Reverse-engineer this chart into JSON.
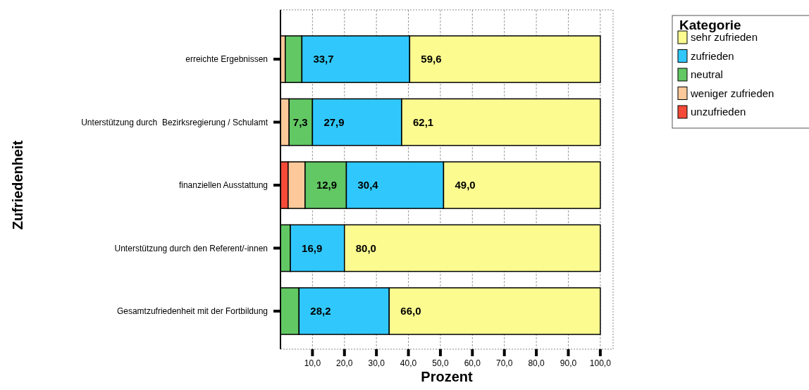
{
  "chart_data": {
    "type": "bar",
    "orientation": "horizontal",
    "stacked": true,
    "categories": [
      "erreichte Ergebnissen",
      "Unterstützung durch  Bezirksregierung / Schulamt",
      "finanziellen Ausstattung",
      "Unterstützung durch den Referent/-innen",
      "Gesamtzufriedenheit mit der Fortbildung"
    ],
    "series": [
      {
        "name": "unzufrieden",
        "color": "#f54a38",
        "values": [
          null,
          null,
          2.4,
          null,
          null
        ],
        "value_labels": [
          null,
          null,
          null,
          null,
          null
        ]
      },
      {
        "name": "weniger zufrieden",
        "color": "#fdc99a",
        "values": [
          1.5,
          2.7,
          5.3,
          null,
          null
        ],
        "value_labels": [
          null,
          null,
          null,
          null,
          null
        ]
      },
      {
        "name": "neutral",
        "color": "#62c864",
        "values": [
          5.2,
          7.3,
          12.9,
          3.1,
          5.8
        ],
        "value_labels": [
          null,
          "7,3",
          "12,9",
          null,
          null
        ]
      },
      {
        "name": "zufrieden",
        "color": "#30c8fc",
        "values": [
          33.7,
          27.9,
          30.4,
          16.9,
          28.2
        ],
        "value_labels": [
          "33,7",
          "27,9",
          "30,4",
          "16,9",
          "28,2"
        ]
      },
      {
        "name": "sehr zufrieden",
        "color": "#fbfb90",
        "values": [
          59.6,
          62.1,
          49.0,
          80.0,
          66.0
        ],
        "value_labels": [
          "59,6",
          "62,1",
          "49,0",
          "80,0",
          "66,0"
        ]
      }
    ],
    "xlim": [
      0,
      104
    ],
    "xticks": [
      {
        "value": 10,
        "label": "10,0"
      },
      {
        "value": 20,
        "label": "20,0"
      },
      {
        "value": 30,
        "label": "30,0"
      },
      {
        "value": 40,
        "label": "40,0"
      },
      {
        "value": 50,
        "label": "50,0"
      },
      {
        "value": 60,
        "label": "60,0"
      },
      {
        "value": 70,
        "label": "70,0"
      },
      {
        "value": 80,
        "label": "80,0"
      },
      {
        "value": 90,
        "label": "90,0"
      },
      {
        "value": 100,
        "label": "100,0"
      }
    ],
    "xlabel": "Prozent",
    "ylabel": "Zufriedenheit",
    "legend_title": "Kategorie",
    "legend": "top right",
    "grid": "x"
  }
}
